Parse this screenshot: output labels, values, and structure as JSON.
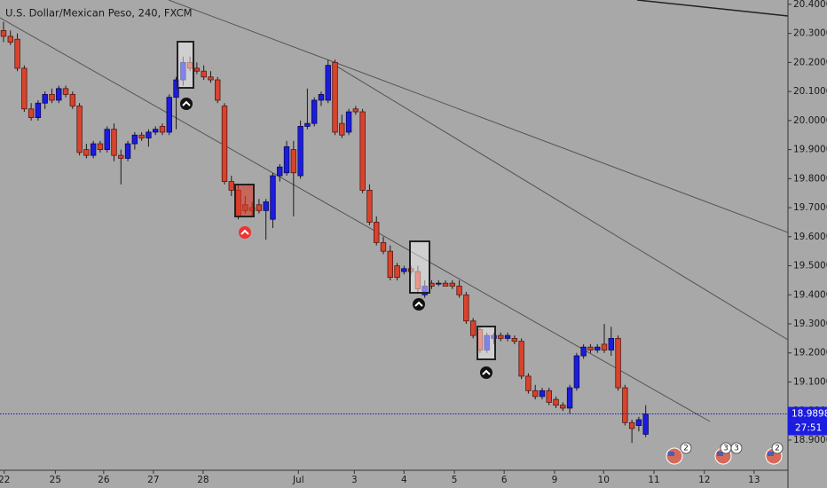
{
  "chart_data": {
    "type": "candlestick",
    "title": "U.S. Dollar/Mexican Peso, 240, FXCM",
    "up_color": "#1c1ce0",
    "down_color": "#d8432e",
    "open": [
      20.31,
      20.29,
      20.28,
      20.18,
      20.04,
      20.01,
      20.06,
      20.09,
      20.07,
      20.11,
      20.09,
      20.05,
      19.9,
      19.88,
      19.92,
      19.9,
      19.97,
      19.88,
      19.87,
      19.92,
      19.95,
      19.94,
      19.96,
      19.98,
      19.96,
      20.08,
      20.14,
      20.2,
      20.18,
      20.17,
      20.15,
      20.14,
      20.05,
      19.79,
      19.76,
      19.71,
      19.7,
      19.71,
      19.69,
      19.66,
      19.81,
      19.82,
      19.9,
      19.81,
      19.98,
      19.99,
      20.07,
      20.07,
      20.2,
      19.99,
      19.96,
      20.04,
      20.03,
      19.76,
      19.65,
      19.58,
      19.55,
      19.5,
      19.48,
      19.49,
      19.48,
      19.4,
      19.44,
      19.44,
      19.44,
      19.44,
      19.43,
      19.4,
      19.31,
      19.28,
      19.21,
      19.25,
      19.26,
      19.25,
      19.25,
      19.24,
      19.12,
      19.07,
      19.05,
      19.07,
      19.04,
      19.02,
      19.01,
      19.08,
      19.19,
      19.22,
      19.21,
      19.23,
      19.21,
      19.25,
      19.08,
      18.96,
      18.95,
      18.92
    ],
    "high": [
      20.34,
      20.31,
      20.3,
      20.19,
      20.06,
      20.07,
      20.1,
      20.11,
      20.12,
      20.12,
      20.1,
      20.06,
      19.92,
      19.93,
      19.93,
      19.98,
      19.99,
      19.9,
      19.93,
      19.96,
      19.96,
      19.97,
      19.98,
      19.99,
      20.09,
      20.15,
      20.22,
      20.22,
      20.2,
      20.19,
      20.17,
      20.15,
      20.06,
      19.81,
      19.78,
      19.74,
      19.72,
      19.73,
      19.73,
      19.82,
      19.85,
      19.93,
      19.93,
      20.0,
      20.11,
      20.08,
      20.1,
      20.21,
      20.21,
      20.02,
      20.04,
      20.05,
      20.04,
      19.78,
      19.67,
      19.6,
      19.57,
      19.51,
      19.5,
      19.5,
      19.5,
      19.45,
      19.45,
      19.45,
      19.45,
      19.45,
      19.45,
      19.41,
      19.32,
      19.29,
      19.27,
      19.27,
      19.27,
      19.27,
      19.26,
      19.25,
      19.13,
      19.09,
      19.08,
      19.08,
      19.05,
      19.03,
      19.09,
      19.2,
      19.23,
      19.23,
      19.23,
      19.3,
      19.29,
      19.26,
      19.09,
      18.97,
      18.98,
      19.02
    ],
    "low": [
      20.27,
      20.26,
      20.17,
      20.03,
      20.0,
      20.0,
      20.04,
      20.06,
      20.06,
      20.08,
      20.04,
      19.88,
      19.87,
      19.87,
      19.89,
      19.89,
      19.86,
      19.78,
      19.86,
      19.9,
      19.93,
      19.91,
      19.95,
      19.95,
      19.95,
      19.97,
      20.12,
      20.17,
      20.16,
      20.14,
      20.13,
      20.06,
      19.78,
      19.74,
      19.66,
      19.68,
      19.67,
      19.68,
      19.59,
      19.63,
      19.79,
      19.81,
      19.67,
      19.8,
      19.97,
      19.98,
      20.05,
      20.06,
      19.95,
      19.94,
      19.95,
      20.02,
      19.75,
      19.64,
      19.57,
      19.54,
      19.45,
      19.45,
      19.47,
      19.47,
      19.41,
      19.39,
      19.42,
      19.43,
      19.43,
      19.42,
      19.39,
      19.3,
      19.25,
      19.2,
      19.2,
      19.23,
      19.24,
      19.24,
      19.23,
      19.11,
      19.06,
      19.04,
      19.04,
      19.02,
      19.01,
      19.0,
      18.99,
      19.07,
      19.18,
      19.2,
      19.2,
      19.2,
      19.19,
      19.07,
      18.95,
      18.89,
      18.93,
      18.91
    ],
    "close": [
      20.29,
      20.27,
      20.18,
      20.04,
      20.01,
      20.06,
      20.09,
      20.07,
      20.11,
      20.09,
      20.05,
      19.89,
      19.88,
      19.92,
      19.9,
      19.97,
      19.88,
      19.87,
      19.92,
      19.95,
      19.94,
      19.96,
      19.97,
      19.96,
      20.08,
      20.14,
      20.2,
      20.18,
      20.17,
      20.15,
      20.14,
      20.07,
      19.79,
      19.76,
      19.67,
      19.69,
      19.69,
      19.69,
      19.72,
      19.81,
      19.84,
      19.91,
      19.82,
      19.98,
      19.99,
      20.07,
      20.09,
      20.19,
      19.96,
      19.95,
      20.03,
      20.03,
      19.76,
      19.65,
      19.58,
      19.55,
      19.46,
      19.46,
      19.49,
      19.48,
      19.42,
      19.43,
      19.43,
      19.44,
      19.43,
      19.43,
      19.4,
      19.31,
      19.26,
      19.21,
      19.26,
      19.26,
      19.25,
      19.26,
      19.24,
      19.12,
      19.07,
      19.05,
      19.07,
      19.03,
      19.02,
      19.01,
      19.08,
      19.19,
      19.22,
      19.21,
      19.22,
      19.21,
      19.25,
      19.08,
      18.96,
      18.94,
      18.97,
      18.9898
    ],
    "xlim": [
      -0.514,
      113.6
    ],
    "xticks": [
      {
        "value": 0.1,
        "label": "22"
      },
      {
        "value": 7.5,
        "label": "25"
      },
      {
        "value": 14.5,
        "label": "26"
      },
      {
        "value": 21.7,
        "label": "27"
      },
      {
        "value": 28.9,
        "label": "28"
      },
      {
        "value": 42.7,
        "label": "Jul"
      },
      {
        "value": 50.8,
        "label": "3"
      },
      {
        "value": 58,
        "label": "4"
      },
      {
        "value": 65.3,
        "label": "5"
      },
      {
        "value": 72.5,
        "label": "6"
      },
      {
        "value": 79.8,
        "label": "9"
      },
      {
        "value": 86.9,
        "label": "10"
      },
      {
        "value": 94.2,
        "label": "11"
      },
      {
        "value": 101.5,
        "label": "12"
      },
      {
        "value": 108.7,
        "label": "13"
      }
    ],
    "ylim": [
      18.796,
      20.415
    ],
    "yticks": [
      {
        "value": 18.9,
        "label": "18.90000"
      },
      {
        "value": 19.0,
        "label": "19.00000"
      },
      {
        "value": 19.1,
        "label": "19.10000"
      },
      {
        "value": 19.2,
        "label": "19.20000"
      },
      {
        "value": 19.3,
        "label": "19.30000"
      },
      {
        "value": 19.4,
        "label": "19.40000"
      },
      {
        "value": 19.5,
        "label": "19.50000"
      },
      {
        "value": 19.6,
        "label": "19.60000"
      },
      {
        "value": 19.7,
        "label": "19.70000"
      },
      {
        "value": 19.8,
        "label": "19.80000"
      },
      {
        "value": 19.9,
        "label": "19.90000"
      },
      {
        "value": 20.0,
        "label": "20.00000"
      },
      {
        "value": 20.1,
        "label": "20.10000"
      },
      {
        "value": 20.2,
        "label": "20.20000"
      },
      {
        "value": 20.3,
        "label": "20.30000"
      },
      {
        "value": 20.4,
        "label": "20.40000"
      }
    ],
    "last_price": {
      "value": 18.9898,
      "label": "18.98980"
    },
    "countdown": "27:51",
    "events": [
      "2",
      "3",
      "3",
      "2"
    ]
  }
}
